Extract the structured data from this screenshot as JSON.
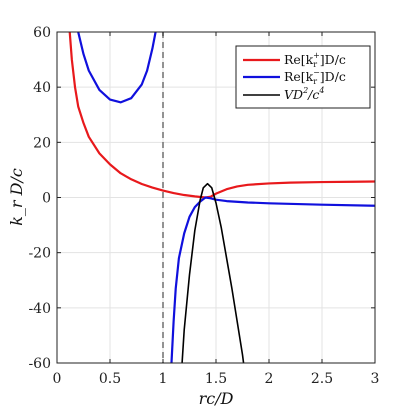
{
  "chart_data": {
    "type": "line",
    "title": "",
    "xlabel": "rc/D",
    "ylabel": "k_r D/c",
    "xlim": [
      0,
      3
    ],
    "ylim": [
      -60,
      60
    ],
    "x_ticks": [
      0,
      0.5,
      1,
      1.5,
      2,
      2.5,
      3
    ],
    "x_tick_labels": [
      "0",
      "0.5",
      "1",
      "1.5",
      "2",
      "2.5",
      "3"
    ],
    "y_ticks": [
      60,
      40,
      20,
      0,
      -20,
      -40,
      -60
    ],
    "y_tick_labels": [
      "60",
      "40",
      "20",
      "0",
      "-20",
      "-40",
      "-60"
    ],
    "grid": true,
    "legend_position": "top-right",
    "vertical_reference_line": {
      "x": 1,
      "style": "dashed",
      "color": "#777777"
    },
    "series": [
      {
        "name": "Re[k_r^+]D/c",
        "legend_label": "Re[k",
        "color": "#e8191c",
        "points": [
          [
            0.12,
            60
          ],
          [
            0.14,
            50
          ],
          [
            0.17,
            40
          ],
          [
            0.2,
            33
          ],
          [
            0.25,
            27
          ],
          [
            0.3,
            22
          ],
          [
            0.4,
            16
          ],
          [
            0.5,
            12
          ],
          [
            0.6,
            8.8
          ],
          [
            0.7,
            6.6
          ],
          [
            0.8,
            4.9
          ],
          [
            0.9,
            3.6
          ],
          [
            1.0,
            2.5
          ],
          [
            1.1,
            1.6
          ],
          [
            1.2,
            0.9
          ],
          [
            1.3,
            0.4
          ],
          [
            1.4,
            0.0
          ],
          [
            1.45,
            0.3
          ],
          [
            1.5,
            1.4
          ],
          [
            1.6,
            3.0
          ],
          [
            1.7,
            4.0
          ],
          [
            1.8,
            4.6
          ],
          [
            2.0,
            5.1
          ],
          [
            2.2,
            5.4
          ],
          [
            2.5,
            5.6
          ],
          [
            2.8,
            5.7
          ],
          [
            3.0,
            5.8
          ]
        ]
      },
      {
        "name": "Re[k_r^-]D/c",
        "legend_label": "Re[k",
        "color": "#1010dd",
        "segments": [
          [
            [
              0.2,
              60
            ],
            [
              0.25,
              52
            ],
            [
              0.3,
              46
            ],
            [
              0.4,
              39
            ],
            [
              0.5,
              35.5
            ],
            [
              0.6,
              34.5
            ],
            [
              0.7,
              36
            ],
            [
              0.8,
              41
            ],
            [
              0.85,
              46
            ],
            [
              0.9,
              54
            ],
            [
              0.93,
              60
            ]
          ],
          [
            [
              1.08,
              -60
            ],
            [
              1.1,
              -45
            ],
            [
              1.12,
              -33
            ],
            [
              1.15,
              -22
            ],
            [
              1.2,
              -13
            ],
            [
              1.25,
              -7
            ],
            [
              1.3,
              -3.5
            ],
            [
              1.35,
              -1.5
            ],
            [
              1.4,
              0.0
            ],
            [
              1.45,
              -0.3
            ],
            [
              1.5,
              -0.8
            ],
            [
              1.6,
              -1.3
            ],
            [
              1.8,
              -1.8
            ],
            [
              2.0,
              -2.1
            ],
            [
              2.5,
              -2.6
            ],
            [
              3.0,
              -3.0
            ]
          ]
        ]
      },
      {
        "name": "VD^2/c^4",
        "legend_label": "VD",
        "color": "#000000",
        "points": [
          [
            1.18,
            -60
          ],
          [
            1.2,
            -48
          ],
          [
            1.25,
            -28
          ],
          [
            1.3,
            -12
          ],
          [
            1.35,
            -1
          ],
          [
            1.38,
            3.5
          ],
          [
            1.42,
            5
          ],
          [
            1.46,
            3.5
          ],
          [
            1.5,
            -2
          ],
          [
            1.55,
            -11
          ],
          [
            1.6,
            -22
          ],
          [
            1.65,
            -33
          ],
          [
            1.7,
            -45
          ],
          [
            1.75,
            -57
          ],
          [
            1.76,
            -60
          ]
        ]
      }
    ]
  }
}
